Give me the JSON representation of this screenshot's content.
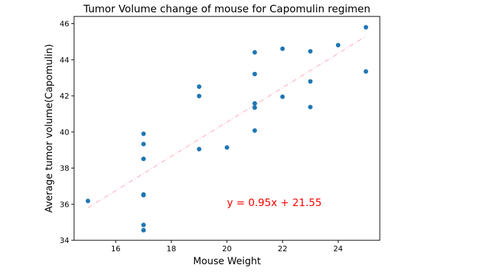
{
  "chart_data": {
    "type": "scatter",
    "title": "Tumor Volume change of mouse for Capomulin regimen",
    "xlabel": "Mouse Weight",
    "ylabel": "Average tumor volume(Capomulin)",
    "xlim": [
      14.5,
      25.5
    ],
    "ylim": [
      34,
      46.4
    ],
    "xticks": [
      16,
      18,
      20,
      22,
      24
    ],
    "yticks": [
      34,
      36,
      38,
      40,
      42,
      44,
      46
    ],
    "grid": false,
    "series": [
      {
        "color": "#1f77b4",
        "points": [
          [
            15,
            36.18
          ],
          [
            17,
            34.85
          ],
          [
            17,
            34.56
          ],
          [
            17,
            36.5
          ],
          [
            17,
            36.54
          ],
          [
            17,
            38.51
          ],
          [
            17,
            39.33
          ],
          [
            17,
            39.9
          ],
          [
            19,
            39.05
          ],
          [
            19,
            41.99
          ],
          [
            19,
            42.51
          ],
          [
            20,
            39.14
          ],
          [
            21,
            40.08
          ],
          [
            21,
            41.35
          ],
          [
            21,
            41.58
          ],
          [
            21,
            43.21
          ],
          [
            21,
            44.41
          ],
          [
            22,
            41.95
          ],
          [
            22,
            44.61
          ],
          [
            23,
            41.38
          ],
          [
            23,
            42.8
          ],
          [
            23,
            44.47
          ],
          [
            24,
            44.81
          ],
          [
            25,
            43.35
          ],
          [
            25,
            45.8
          ]
        ]
      }
    ],
    "regression": {
      "slope": 0.95,
      "intercept": 21.55,
      "x_range": [
        15,
        25
      ],
      "color": "#ffc0cb",
      "style": "dashed"
    },
    "annotation": {
      "text": "y = 0.95x + 21.55",
      "color": "#ff0000",
      "x": 20,
      "y": 35.9
    }
  }
}
